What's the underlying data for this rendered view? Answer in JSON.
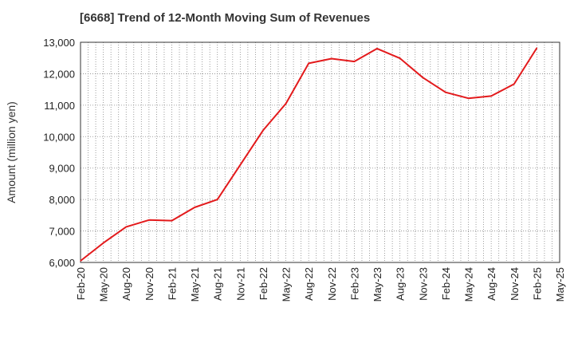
{
  "chart_data": {
    "type": "line",
    "title": "[6668]  Trend of 12-Month Moving Sum of Revenues",
    "xlabel": "",
    "ylabel": "Amount (million yen)",
    "ylim": [
      6000,
      13000
    ],
    "y_ticks": [
      "6,000",
      "7,000",
      "8,000",
      "9,000",
      "10,000",
      "11,000",
      "12,000",
      "13,000"
    ],
    "x_tick_labels": [
      "Feb-20",
      "May-20",
      "Aug-20",
      "Nov-20",
      "Feb-21",
      "May-21",
      "Aug-21",
      "Nov-21",
      "Feb-22",
      "May-22",
      "Aug-22",
      "Nov-22",
      "Feb-23",
      "May-23",
      "Aug-23",
      "Nov-23",
      "Feb-24",
      "May-24",
      "Aug-24",
      "Nov-24",
      "Feb-25",
      "May-25"
    ],
    "grid": true,
    "line_color": "#e31a1c",
    "series": [
      {
        "x": [
          "Feb-20",
          "May-20",
          "Aug-20",
          "Nov-20",
          "Feb-21",
          "May-21",
          "Aug-21",
          "Nov-21",
          "Feb-22",
          "May-22",
          "Aug-22",
          "Nov-22",
          "Feb-23",
          "May-23",
          "Aug-23",
          "Nov-23",
          "Feb-24",
          "May-24",
          "Aug-24",
          "Nov-24",
          "Feb-25"
        ],
        "values": [
          6050,
          6620,
          7130,
          7350,
          7330,
          7750,
          8000,
          9100,
          10200,
          11050,
          12330,
          12480,
          12390,
          12800,
          12490,
          11880,
          11410,
          11220,
          11290,
          11670,
          12820
        ]
      }
    ]
  }
}
